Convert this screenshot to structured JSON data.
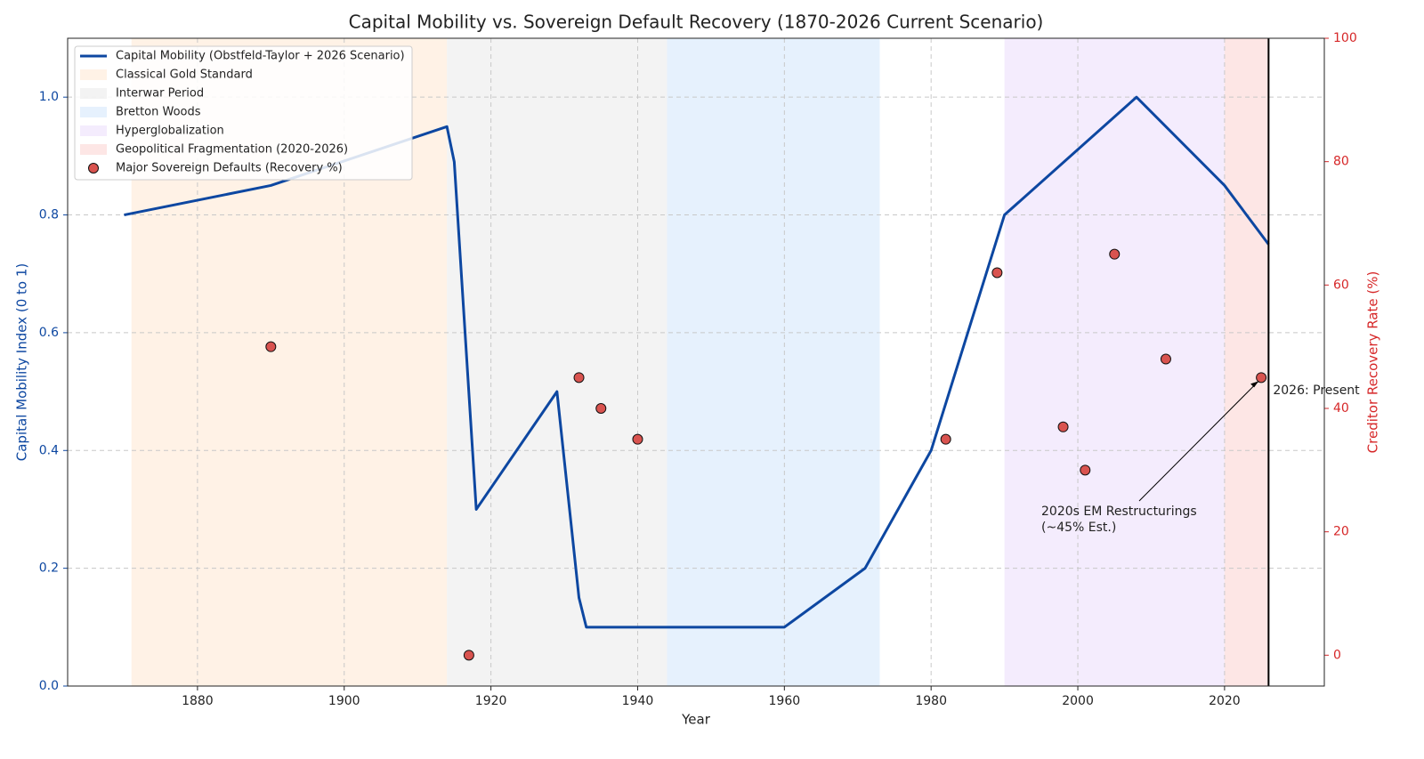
{
  "chart_data": {
    "type": "line",
    "title": "Capital Mobility vs. Sovereign Default Recovery (1870-2026 Current Scenario)",
    "xlabel": "Year",
    "ylabel": "Capital Mobility Index (0 to 1)",
    "y2label": "Creditor Recovery Rate (%)",
    "x": [
      1870,
      1890,
      1914,
      1915,
      1918,
      1929,
      1932,
      1933,
      1960,
      1971,
      1980,
      1990,
      2008,
      2020,
      2026
    ],
    "series": [
      {
        "name": "Capital Mobility (Obstfeld-Taylor + 2026 Scenario)",
        "color": "#0d47a1",
        "type": "line",
        "values": [
          0.8,
          0.85,
          0.95,
          0.89,
          0.3,
          0.5,
          0.15,
          0.1,
          0.1,
          0.2,
          0.4,
          0.8,
          1.0,
          0.85,
          0.75
        ]
      },
      {
        "name": "Major Sovereign Defaults (Recovery %)",
        "color": "#d9534f",
        "type": "scatter",
        "axis": "y2",
        "x": [
          1890,
          1917,
          1932,
          1935,
          1940,
          1982,
          1989,
          1998,
          2001,
          2005,
          2012,
          2025
        ],
        "values": [
          50,
          0,
          45,
          40,
          35,
          35,
          62,
          37,
          30,
          65,
          48,
          45
        ]
      }
    ],
    "spans": [
      {
        "name": "Classical Gold Standard",
        "start": 1871,
        "end": 1914,
        "color": "#ffe9d6"
      },
      {
        "name": "Interwar Period",
        "start": 1914,
        "end": 1944,
        "color": "#ebebeb"
      },
      {
        "name": "Bretton Woods",
        "start": 1944,
        "end": 1973,
        "color": "#d6e8fb"
      },
      {
        "name": "Hyperglobalization",
        "start": 1990,
        "end": 2020,
        "color": "#ece0fb"
      },
      {
        "name": "Geopolitical Fragmentation (2020-2026)",
        "start": 2020,
        "end": 2026,
        "color": "#fbd6d3"
      }
    ],
    "vline": {
      "x": 2026,
      "label": "2026: Present"
    },
    "annotation": {
      "lines": [
        "2020s EM Restructurings",
        "(~45% Est.)"
      ]
    },
    "xlim": [
      1862.3,
      2033.6
    ],
    "xticks": [
      1880,
      1900,
      1920,
      1940,
      1960,
      1980,
      2000,
      2020
    ],
    "ylim": [
      0,
      1.1
    ],
    "yticks": [
      {
        "value": 0,
        "label": "0.0"
      },
      0.2,
      0.4,
      0.6,
      0.8,
      {
        "value": 1,
        "label": "1.0"
      }
    ],
    "y2lim": [
      -5,
      100
    ],
    "y2ticks": [
      0,
      20,
      40,
      60,
      80,
      100
    ],
    "grid": true
  }
}
